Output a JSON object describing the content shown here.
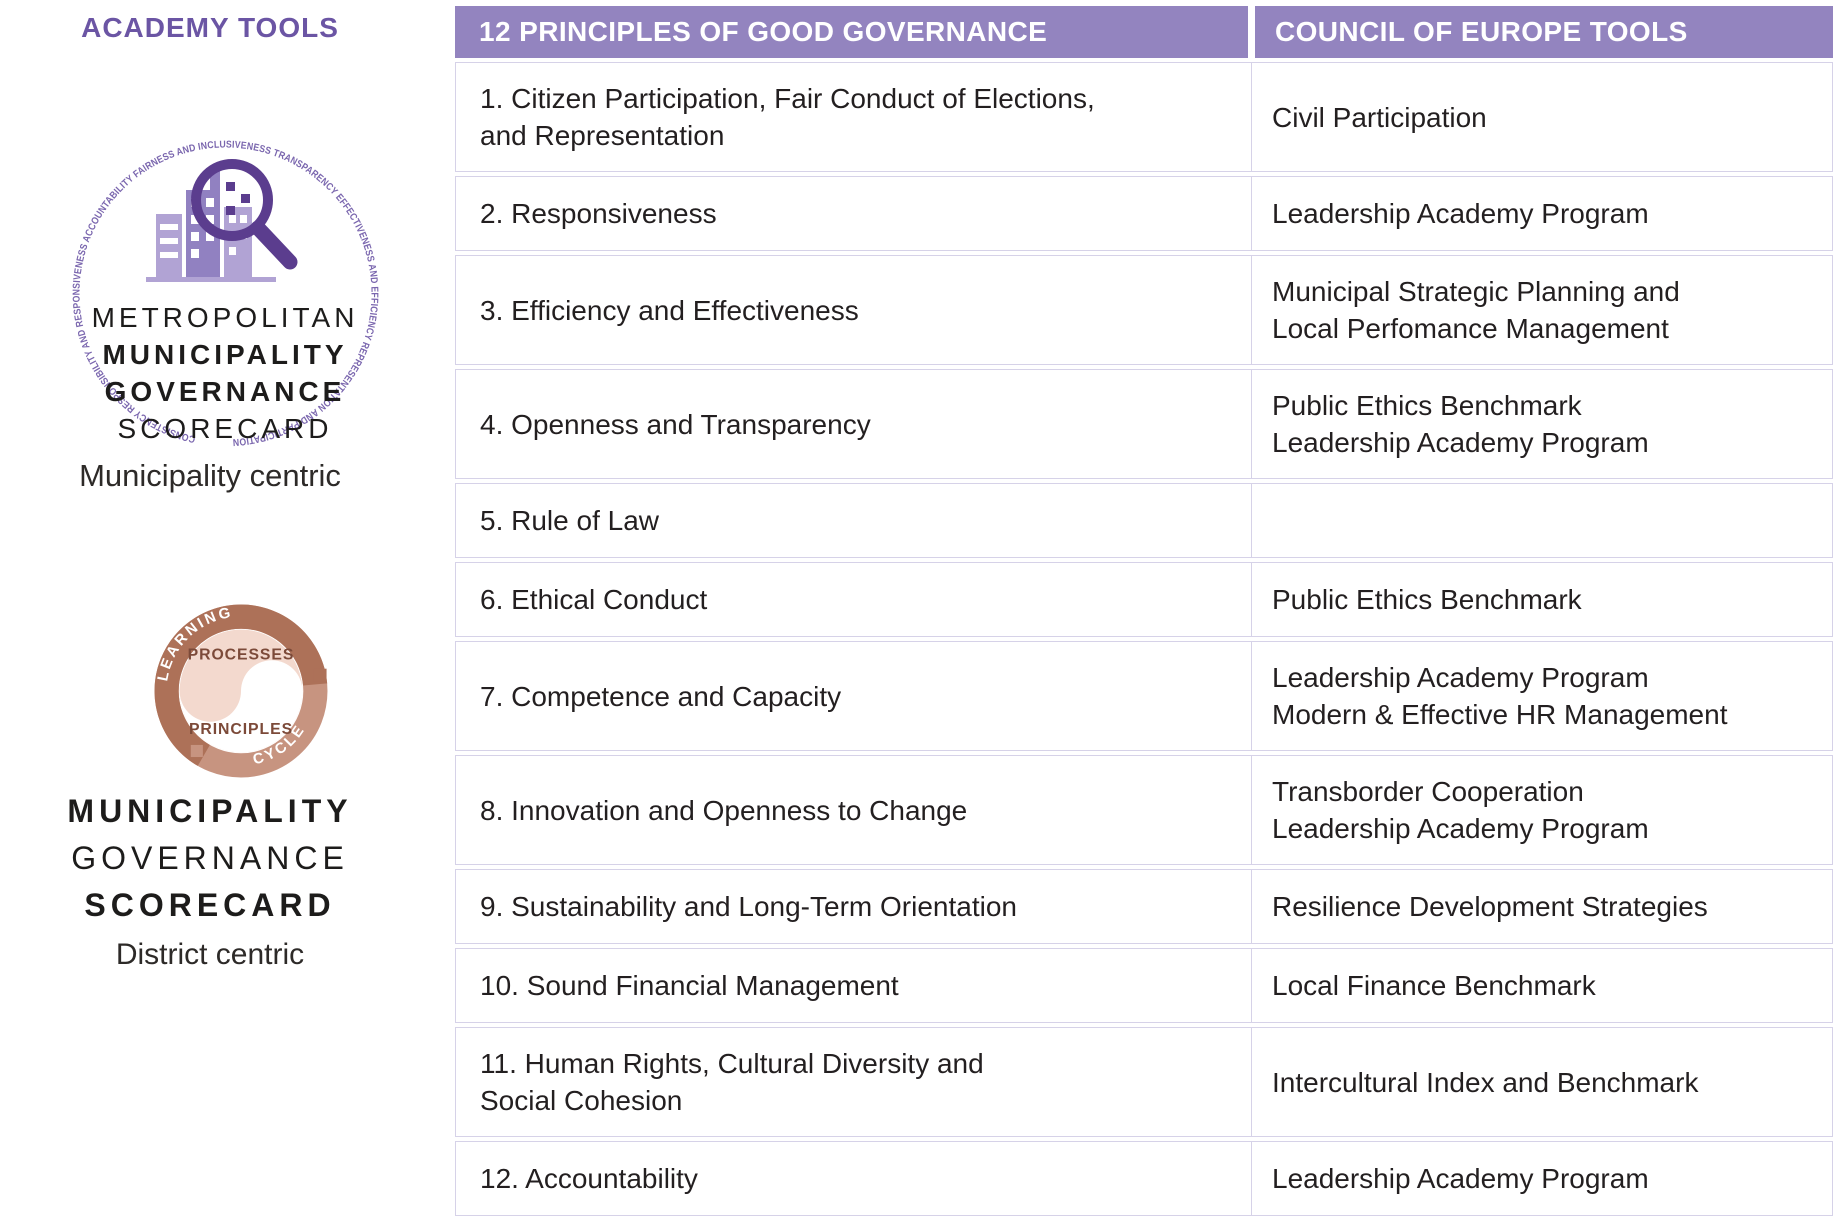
{
  "colors": {
    "header_purple": "#9384bf",
    "title_purple": "#6b55a4",
    "ring_text_purple": "#7a66ae",
    "magnifier_purple": "#5b3d8e",
    "building_light": "#b1a3d4",
    "building_mid": "#9181c1",
    "row_border": "#d6d2e8",
    "ring_dark_brown": "#ad7158",
    "ring_light_brown": "#c79480",
    "inner_pink": "#f3d9ce",
    "brown_text": "#7c4a39",
    "body_text": "#231f20"
  },
  "sidebar": {
    "title": "ACADEMY TOOLS",
    "logo1": {
      "ring_text": "CONSISTENCY  RESPONSIBILITY AND RESPONSIVENESS  ACCOUNTABILITY  FAIRNESS AND INCLUSIVENESS  TRANSPARENCY  EFFECTIVENESS AND EFFICIENCY  REPRESENTATION AND PARTICIPATION",
      "line1": "METROPOLITAN",
      "line2": "MUNICIPALITY",
      "line3": "GOVERNANCE",
      "line4": "SCORECARD",
      "caption": "Municipality centric"
    },
    "logo2": {
      "arc_top": "LEARNING",
      "arc_bottom": "CYCLE",
      "inner_top": "PROCESSES",
      "inner_bottom": "PRINCIPLES",
      "line1": "MUNICIPALITY",
      "line2": "GOVERNANCE",
      "line3": "SCORECARD",
      "caption": "District centric"
    }
  },
  "table": {
    "headers": [
      "12 PRINCIPLES OF GOOD GOVERNANCE",
      "COUNCIL OF EUROPE TOOLS"
    ],
    "rows": [
      {
        "principle": "1. Citizen Participation, Fair Conduct of Elections,\nand Representation",
        "tools": [
          "Civil Participation"
        ]
      },
      {
        "principle": "2. Responsiveness",
        "tools": [
          "Leadership Academy Program"
        ]
      },
      {
        "principle": "3. Efficiency and Effectiveness",
        "tools": [
          "Municipal Strategic Planning and\nLocal Perfomance Management"
        ]
      },
      {
        "principle": "4. Openness and Transparency",
        "tools": [
          "Public Ethics Benchmark",
          "Leadership Academy Program"
        ]
      },
      {
        "principle": "5. Rule of Law",
        "tools": []
      },
      {
        "principle": "6. Ethical Conduct",
        "tools": [
          "Public Ethics Benchmark"
        ]
      },
      {
        "principle": "7. Competence and Capacity",
        "tools": [
          "Leadership Academy Program",
          "Modern & Effective HR Management"
        ]
      },
      {
        "principle": "8. Innovation and Openness to Change",
        "tools": [
          "Transborder Cooperation",
          "Leadership Academy Program"
        ]
      },
      {
        "principle": "9. Sustainability and Long-Term Orientation",
        "tools": [
          "Resilience Development Strategies"
        ]
      },
      {
        "principle": "10. Sound Financial Management",
        "tools": [
          "Local Finance Benchmark"
        ]
      },
      {
        "principle": "11. Human Rights, Cultural Diversity and\nSocial Cohesion",
        "tools": [
          "Intercultural Index and Benchmark"
        ]
      },
      {
        "principle": "12. Accountability",
        "tools": [
          "Leadership Academy Program"
        ]
      }
    ]
  }
}
